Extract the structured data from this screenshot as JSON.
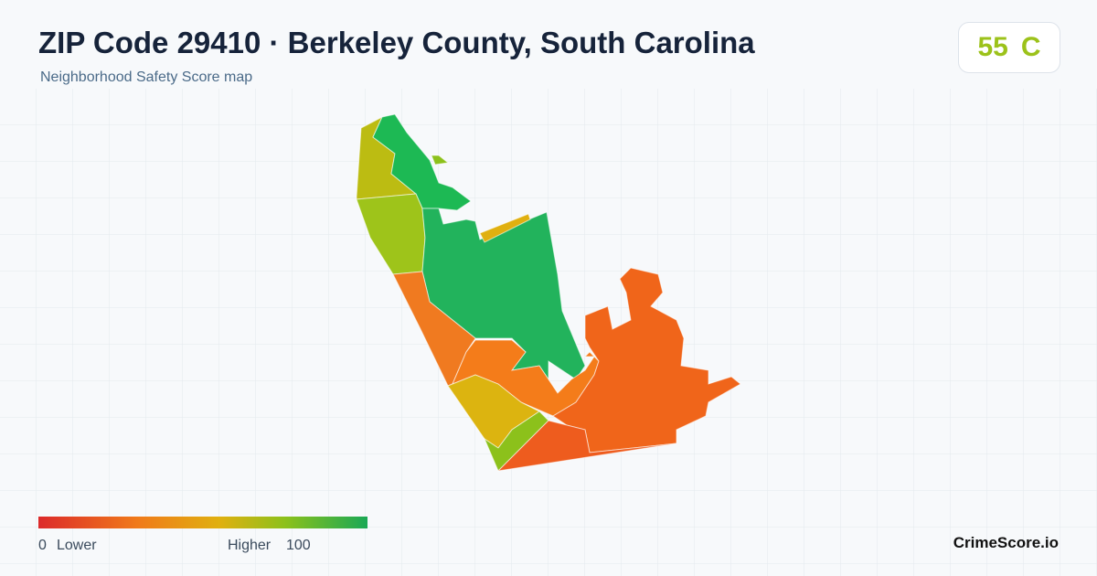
{
  "header": {
    "title": "ZIP Code 29410 · Berkeley County, South Carolina",
    "subtitle": "Neighborhood Safety Score map"
  },
  "score": {
    "value": 55,
    "grade": "C"
  },
  "legend": {
    "min": 0,
    "min_label": "Lower",
    "max_label": "Higher",
    "max": 100
  },
  "brand": "CrimeScore.io"
}
